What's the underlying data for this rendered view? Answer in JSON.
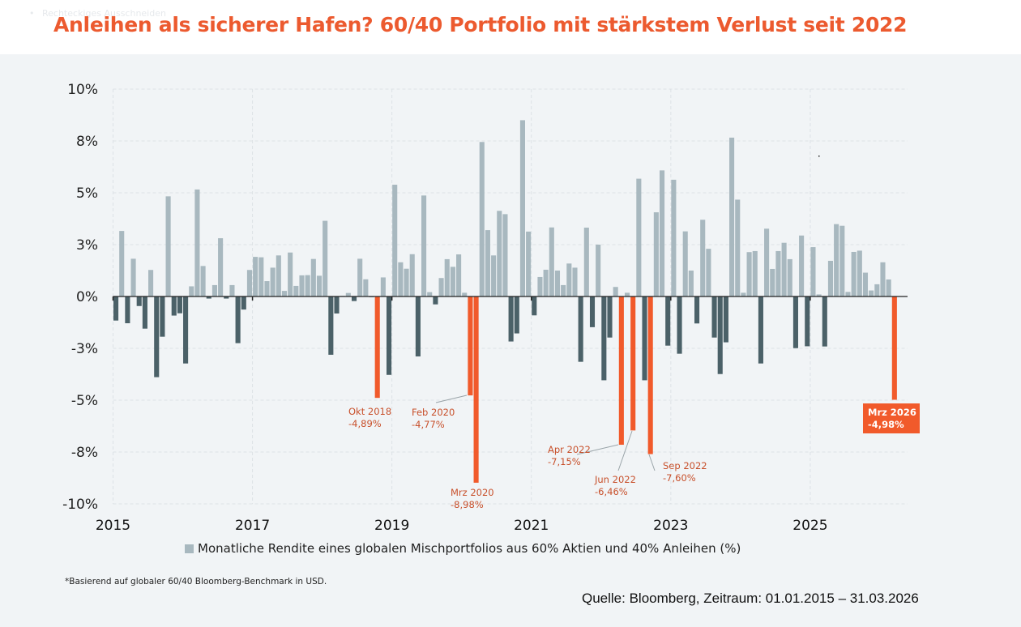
{
  "overlay": {
    "bullet": "•",
    "ghost_text": "Rechteckiges Ausschneiden"
  },
  "header": {
    "title": "Anleihen als sicherer Hafen? 60/40 Portfolio mit stärkstem Verlust seit 2022"
  },
  "colors": {
    "title": "#ec5a2f",
    "positive_bar": "#a8b8bf",
    "negative_bar": "#4b6168",
    "highlight_bar": "#f15a2b",
    "annotation_text": "#c8502b",
    "panel_background": "#f1f4f6"
  },
  "chart_data": {
    "type": "bar",
    "title": "Anleihen als sicherer Hafen? 60/40 Portfolio mit stärkstem Verlust seit 2022",
    "xlabel": "",
    "ylabel": "",
    "ylim": [
      -10,
      10
    ],
    "grid": true,
    "legend_position": "bottom",
    "y_ticks": [
      {
        "value": 10,
        "label": "10%"
      },
      {
        "value": 7.5,
        "label": "8%"
      },
      {
        "value": 5,
        "label": "5%"
      },
      {
        "value": 2.5,
        "label": "3%"
      },
      {
        "value": 0,
        "label": "0%"
      },
      {
        "value": -2.5,
        "label": "-3%"
      },
      {
        "value": -5,
        "label": "-5%"
      },
      {
        "value": -7.5,
        "label": "-8%"
      },
      {
        "value": -10,
        "label": "-10%"
      }
    ],
    "x_ticks": [
      {
        "month_index": 0,
        "label": "2015"
      },
      {
        "month_index": 24,
        "label": "2017"
      },
      {
        "month_index": 48,
        "label": "2019"
      },
      {
        "month_index": 72,
        "label": "2021"
      },
      {
        "month_index": 96,
        "label": "2023"
      },
      {
        "month_index": 120,
        "label": "2025"
      }
    ],
    "start_month": "2015-01",
    "end_month": "2026-03",
    "series": [
      {
        "name": "Monatliche Rendite eines globalen Mischportfolios aus 60% Aktien und 40% Anleihen (%)",
        "values": [
          -1.16,
          3.16,
          -1.29,
          1.82,
          -0.46,
          -1.55,
          1.28,
          -3.89,
          -1.94,
          4.83,
          -0.92,
          -0.81,
          -3.23,
          0.49,
          5.16,
          1.47,
          -0.1,
          0.55,
          2.81,
          -0.1,
          0.55,
          -2.25,
          -0.63,
          1.28,
          1.91,
          1.89,
          0.74,
          1.39,
          1.98,
          0.27,
          2.12,
          0.51,
          1.02,
          1.03,
          1.81,
          1.0,
          3.65,
          -2.81,
          -0.82,
          0.03,
          0.17,
          -0.22,
          1.82,
          0.83,
          -0.02,
          -4.89,
          0.92,
          -3.78,
          5.39,
          1.65,
          1.34,
          2.04,
          -2.89,
          4.87,
          0.21,
          -0.38,
          0.89,
          1.8,
          1.43,
          2.03,
          0.18,
          -4.77,
          -8.98,
          7.45,
          3.2,
          1.98,
          4.13,
          3.97,
          -2.17,
          -1.78,
          8.5,
          3.13,
          -0.91,
          0.94,
          1.29,
          3.33,
          1.25,
          0.55,
          1.59,
          1.39,
          -3.15,
          3.32,
          -1.48,
          2.5,
          -4.04,
          -1.98,
          0.46,
          -7.15,
          0.18,
          -6.46,
          5.68,
          -4.04,
          -7.6,
          4.06,
          6.08,
          -2.37,
          5.63,
          -2.76,
          3.14,
          1.25,
          -1.3,
          3.7,
          2.3,
          -1.98,
          -3.74,
          -2.21,
          7.66,
          4.67,
          0.18,
          2.14,
          2.19,
          -3.23,
          3.27,
          1.33,
          2.19,
          2.59,
          1.8,
          -2.49,
          2.94,
          -2.4,
          2.38,
          0.1,
          -2.41,
          1.72,
          3.49,
          3.41,
          0.22,
          2.15,
          2.21,
          1.15,
          0.29,
          0.59,
          1.65,
          0.82,
          -4.98
        ]
      }
    ],
    "highlighted": [
      {
        "month_index": 45,
        "label": "Okt 2018",
        "value_label": "-4,89%",
        "value": -4.89
      },
      {
        "month_index": 61,
        "label": "Feb 2020",
        "value_label": "-4,77%",
        "value": -4.77
      },
      {
        "month_index": 62,
        "label": "Mrz 2020",
        "value_label": "-8,98%",
        "value": -8.98
      },
      {
        "month_index": 87,
        "label": "Apr 2022",
        "value_label": "-7,15%",
        "value": -7.15
      },
      {
        "month_index": 89,
        "label": "Jun 2022",
        "value_label": "-6,46%",
        "value": -6.46
      },
      {
        "month_index": 92,
        "label": "Sep 2022",
        "value_label": "-7,60%",
        "value": -7.6
      },
      {
        "month_index": 134,
        "label": "Mrz 2026",
        "value_label": "-4,98%",
        "value": -4.98,
        "boxed": true
      }
    ]
  },
  "legend": {
    "label": "Monatliche Rendite eines globalen Mischportfolios aus 60% Aktien und 40% Anleihen (%)"
  },
  "footnote": "*Basierend auf globaler 60/40 Bloomberg-Benchmark in USD.",
  "source": "Quelle: Bloomberg, Zeitraum: 01.01.2015 – 31.03.2026"
}
